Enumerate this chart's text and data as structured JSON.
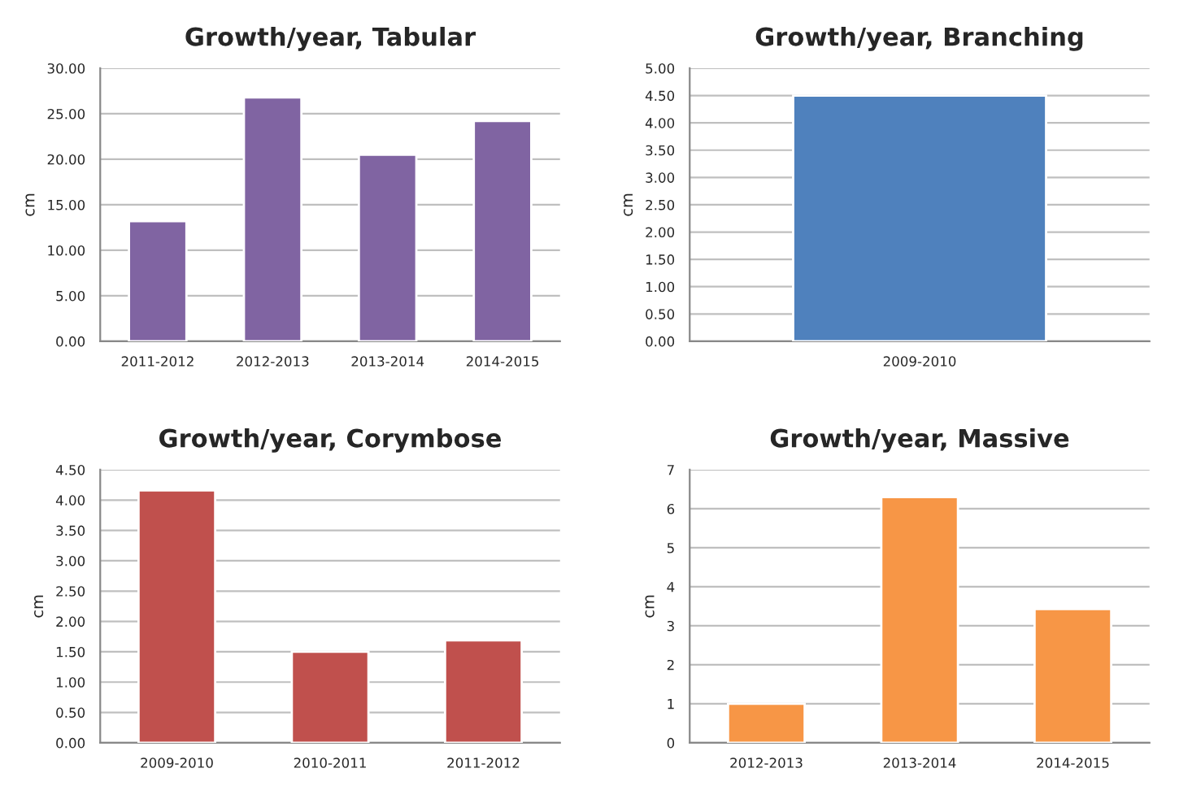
{
  "chart_data": [
    {
      "type": "bar",
      "title": "Growth/year, Tabular",
      "ylabel": "cm",
      "categories": [
        "2011-2012",
        "2012-2013",
        "2013-2014",
        "2014-2015"
      ],
      "values": [
        13.2,
        26.8,
        20.5,
        24.2
      ],
      "color": "#8064a2",
      "ylim": [
        0,
        30
      ],
      "yticks": [
        {
          "value": 0,
          "label": "0.00"
        },
        {
          "value": 5,
          "label": "5.00"
        },
        {
          "value": 10,
          "label": "10.00"
        },
        {
          "value": 15,
          "label": "15.00"
        },
        {
          "value": 20,
          "label": "20.00"
        },
        {
          "value": 25,
          "label": "25.00"
        },
        {
          "value": 30,
          "label": "30.00"
        }
      ],
      "grid": "y"
    },
    {
      "type": "bar",
      "title": "Growth/year, Corymbose",
      "ylabel": "cm",
      "categories": [
        "2009-2010",
        "2010-2011",
        "2011-2012"
      ],
      "values": [
        4.16,
        1.5,
        1.69
      ],
      "color": "#c0504d",
      "ylim": [
        0,
        4.5
      ],
      "yticks": [
        {
          "value": 0,
          "label": "0.00"
        },
        {
          "value": 0.5,
          "label": "0.50"
        },
        {
          "value": 1,
          "label": "1.00"
        },
        {
          "value": 1.5,
          "label": "1.50"
        },
        {
          "value": 2,
          "label": "2.00"
        },
        {
          "value": 2.5,
          "label": "2.50"
        },
        {
          "value": 3,
          "label": "3.00"
        },
        {
          "value": 3.5,
          "label": "3.50"
        },
        {
          "value": 4,
          "label": "4.00"
        },
        {
          "value": 4.5,
          "label": "4.50"
        }
      ],
      "grid": "y"
    },
    {
      "type": "bar",
      "title": "Growth/year, Branching",
      "ylabel": "cm",
      "categories": [
        "2009-2010"
      ],
      "values": [
        4.5
      ],
      "color": "#4f81bd",
      "ylim": [
        0,
        5
      ],
      "yticks": [
        {
          "value": 0,
          "label": "0.00"
        },
        {
          "value": 0.5,
          "label": "0.50"
        },
        {
          "value": 1,
          "label": "1.00"
        },
        {
          "value": 1.5,
          "label": "1.50"
        },
        {
          "value": 2,
          "label": "2.00"
        },
        {
          "value": 2.5,
          "label": "2.50"
        },
        {
          "value": 3,
          "label": "3.00"
        },
        {
          "value": 3.5,
          "label": "3.50"
        },
        {
          "value": 4,
          "label": "4.00"
        },
        {
          "value": 4.5,
          "label": "4.50"
        },
        {
          "value": 5,
          "label": "5.00"
        }
      ],
      "grid": "y"
    },
    {
      "type": "bar",
      "title": "Growth/year, Massive",
      "ylabel": "cm",
      "categories": [
        "2012-2013",
        "2013-2014",
        "2014-2015"
      ],
      "values": [
        1.0,
        6.3,
        3.43
      ],
      "color": "#f79646",
      "ylim": [
        0,
        7
      ],
      "yticks": [
        0,
        1,
        2,
        3,
        4,
        5,
        6,
        7
      ],
      "grid": "y"
    }
  ]
}
